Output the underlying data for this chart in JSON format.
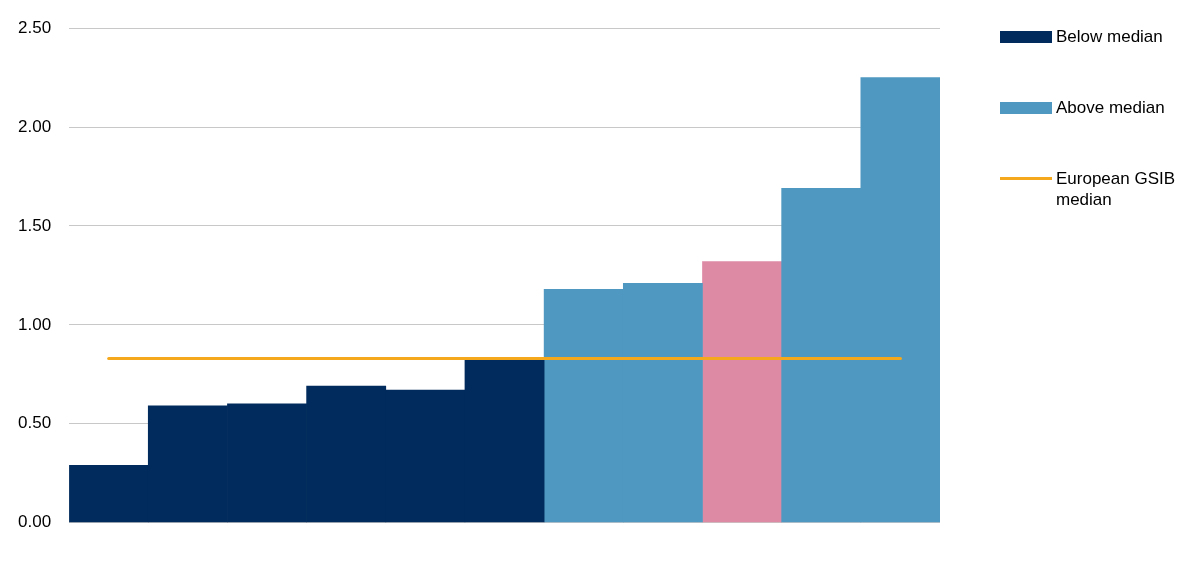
{
  "chart_data": {
    "type": "bar",
    "categories": [
      null,
      null,
      null,
      null,
      null,
      null,
      null,
      null,
      null,
      null,
      null
    ],
    "series": [
      {
        "name": "Below median",
        "color": "#002b5c",
        "values": [
          0.29,
          0.59,
          0.6,
          0.69,
          0.67,
          0.83,
          null,
          null,
          null,
          null,
          null
        ]
      },
      {
        "name": "Above median",
        "color": "#4f98c1",
        "values": [
          null,
          null,
          null,
          null,
          null,
          null,
          1.18,
          1.21,
          null,
          1.69,
          2.25
        ]
      },
      {
        "color": "#dd8aa5",
        "values": [
          null,
          null,
          null,
          null,
          null,
          null,
          null,
          null,
          1.32,
          null,
          null
        ]
      }
    ],
    "stacked": true,
    "ylim": [
      0,
      2.5
    ],
    "yticks": [
      {
        "value": 0,
        "label": "0.00"
      },
      {
        "value": 0.5,
        "label": "0.50"
      },
      {
        "value": 1,
        "label": "1.00"
      },
      {
        "value": 1.5,
        "label": "1.50"
      },
      {
        "value": 2,
        "label": "2.00"
      },
      {
        "value": 2.5,
        "label": "2.50"
      }
    ],
    "grid": "y",
    "legend": "right",
    "ref_lines": [
      {
        "axis": "y",
        "value": 0.83,
        "label": "European GSIB median",
        "color": "#f5a81c"
      }
    ]
  }
}
